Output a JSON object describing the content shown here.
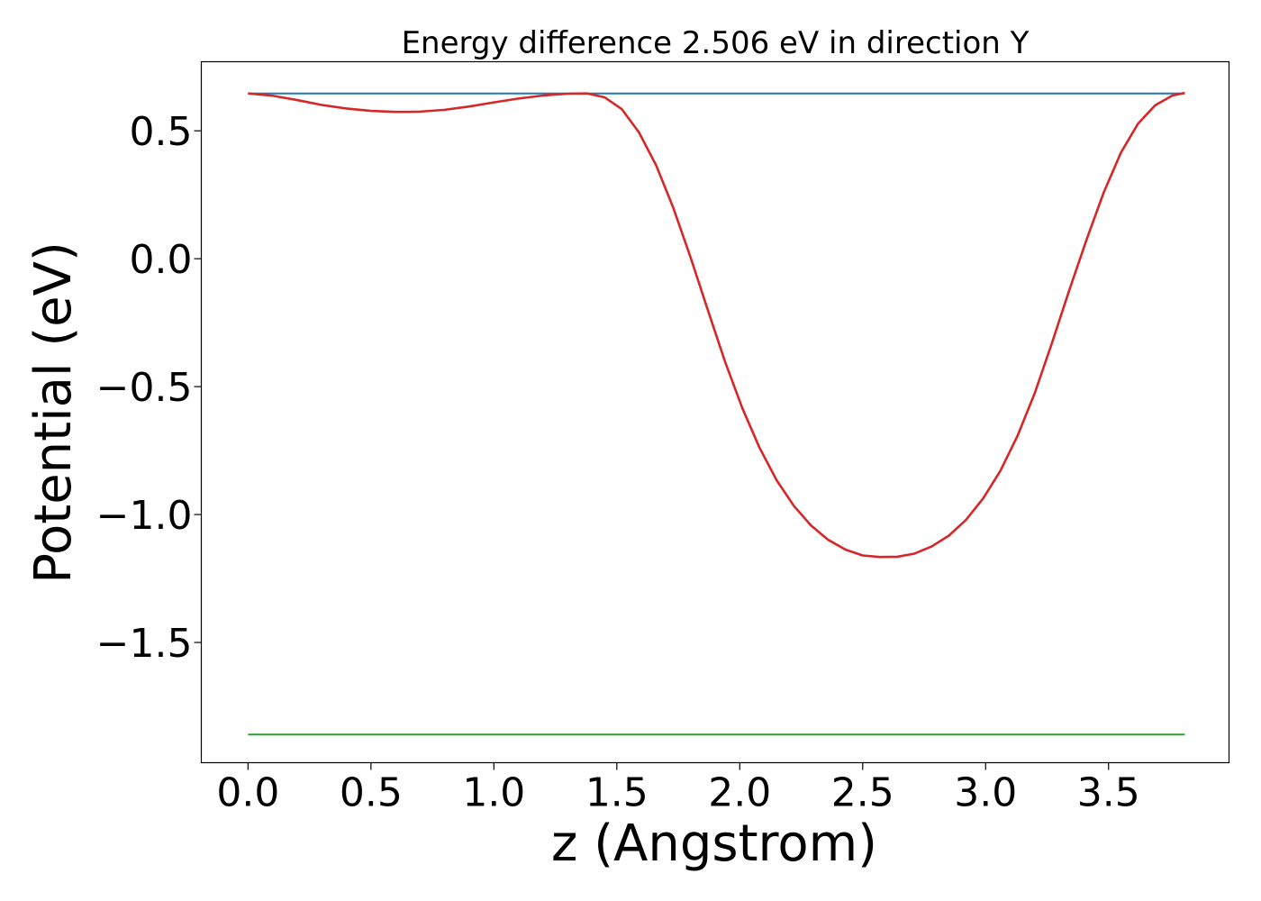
{
  "chart_data": {
    "type": "line",
    "title": "Energy difference 2.506 eV in direction Y",
    "xlabel": "z (Angstrom)",
    "ylabel": "Potential (eV)",
    "xlim": [
      -0.19,
      3.99
    ],
    "ylim": [
      -1.97,
      0.77
    ],
    "xticks": [
      0.0,
      0.5,
      1.0,
      1.5,
      2.0,
      2.5,
      3.0,
      3.5
    ],
    "xtick_labels": [
      "0.0",
      "0.5",
      "1.0",
      "1.5",
      "2.0",
      "2.5",
      "3.0",
      "3.5"
    ],
    "yticks": [
      0.5,
      0.0,
      -0.5,
      -1.0,
      -1.5
    ],
    "ytick_labels": [
      "0.5",
      "0.0",
      "−0.5",
      "−1.0",
      "−1.5"
    ],
    "grid": false,
    "legend": "none",
    "series": [
      {
        "color": "#1f77b4",
        "x": [
          0.0,
          3.81
        ],
        "y": [
          0.646,
          0.646
        ]
      },
      {
        "color": "#2ca02c",
        "x": [
          0.0,
          3.81
        ],
        "y": [
          -1.86,
          -1.86
        ]
      },
      {
        "color": "#d62728",
        "x": [
          0.0,
          0.1,
          0.2,
          0.3,
          0.4,
          0.5,
          0.6,
          0.65,
          0.7,
          0.8,
          0.9,
          1.0,
          1.1,
          1.2,
          1.3,
          1.38,
          1.45,
          1.52,
          1.59,
          1.66,
          1.73,
          1.8,
          1.87,
          1.94,
          2.01,
          2.08,
          2.15,
          2.22,
          2.29,
          2.36,
          2.43,
          2.5,
          2.57,
          2.64,
          2.71,
          2.78,
          2.85,
          2.92,
          2.99,
          3.06,
          3.13,
          3.2,
          3.27,
          3.34,
          3.41,
          3.48,
          3.55,
          3.62,
          3.69,
          3.76,
          3.81
        ],
        "y": [
          0.646,
          0.637,
          0.62,
          0.601,
          0.587,
          0.578,
          0.574,
          0.574,
          0.575,
          0.582,
          0.595,
          0.611,
          0.626,
          0.638,
          0.645,
          0.646,
          0.631,
          0.585,
          0.494,
          0.365,
          0.198,
          0.005,
          -0.2,
          -0.402,
          -0.583,
          -0.738,
          -0.866,
          -0.966,
          -1.043,
          -1.099,
          -1.137,
          -1.16,
          -1.166,
          -1.165,
          -1.153,
          -1.125,
          -1.083,
          -1.021,
          -0.937,
          -0.829,
          -0.692,
          -0.525,
          -0.329,
          -0.124,
          0.073,
          0.258,
          0.414,
          0.528,
          0.6,
          0.638,
          0.648
        ]
      }
    ]
  }
}
